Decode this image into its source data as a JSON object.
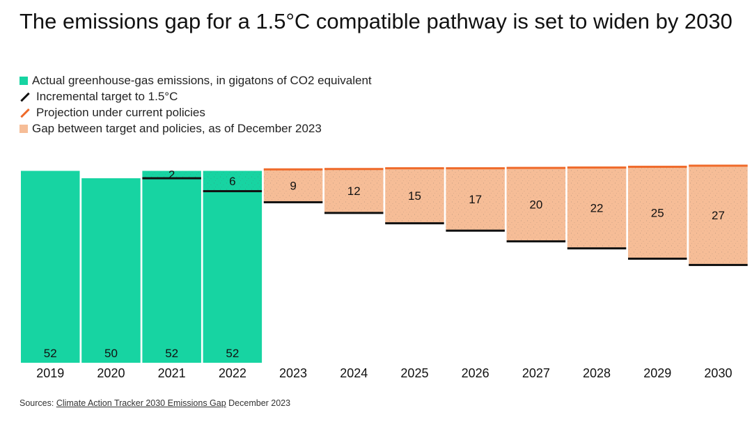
{
  "title": "The emissions gap for a 1.5°C compatible pathway is set to widen by 2030",
  "legend": {
    "actual": "Actual greenhouse-gas emissions, in gigatons of CO2 equivalent",
    "target": "Incremental target to 1.5°C",
    "projection": "Projection under current policies",
    "gap": "Gap between target and policies, as of December 2023"
  },
  "colors": {
    "actual": "#17d4a2",
    "gap": "#f6bd97",
    "projection": "#ef6a2a",
    "target": "#111111"
  },
  "source": {
    "prefix": "Sources: ",
    "link": "Climate Action Tracker 2030 Emissions Gap",
    "suffix": " December 2023"
  },
  "chart_data": {
    "type": "bar",
    "title": "The emissions gap for a 1.5°C compatible pathway is set to widen by 2030",
    "unit": "gigatons of CO2 equivalent",
    "categories": [
      "2019",
      "2020",
      "2021",
      "2022",
      "2023",
      "2024",
      "2025",
      "2026",
      "2027",
      "2028",
      "2029",
      "2030"
    ],
    "ylim": [
      0,
      58
    ],
    "series": [
      {
        "name": "Actual greenhouse-gas emissions, in gigatons of CO2 equivalent",
        "values": [
          52,
          50,
          52,
          52,
          null,
          null,
          null,
          null,
          null,
          null,
          null,
          null
        ]
      },
      {
        "name": "Projection under current policies",
        "values": [
          null,
          null,
          null,
          52.5,
          52.5,
          52.6,
          52.8,
          52.8,
          52.9,
          53.0,
          53.2,
          53.5
        ]
      },
      {
        "name": "Incremental target to 1.5°C",
        "values": [
          null,
          null,
          50,
          46.5,
          43.5,
          40.6,
          37.8,
          35.8,
          32.9,
          31.0,
          28.2,
          26.5
        ]
      },
      {
        "name": "Gap between target and policies, as of December 2023",
        "values": [
          null,
          null,
          2,
          6,
          9,
          12,
          15,
          17,
          20,
          22,
          25,
          27
        ]
      }
    ],
    "bar_labels": [
      52,
      50,
      52,
      52,
      null,
      null,
      null,
      null,
      null,
      null,
      null,
      null
    ],
    "gap_labels": [
      null,
      null,
      2,
      6,
      9,
      12,
      15,
      17,
      20,
      22,
      25,
      27
    ],
    "legend_position": "top-left"
  }
}
